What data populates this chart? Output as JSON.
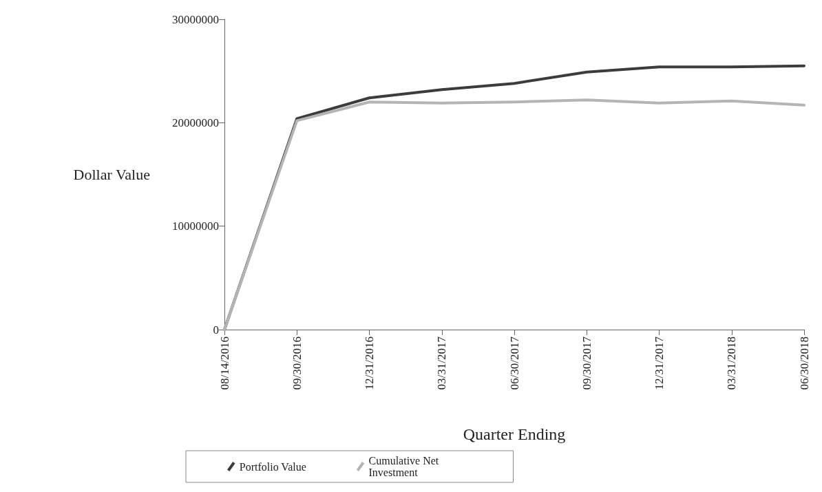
{
  "chart_data": {
    "type": "line",
    "xlabel": "Quarter Ending",
    "ylabel": "Dollar Value",
    "categories": [
      "08/14/2016",
      "09/30/2016",
      "12/31/2016",
      "03/31/2017",
      "06/30/2017",
      "09/30/2017",
      "12/31/2017",
      "03/31/2018",
      "06/30/2018"
    ],
    "series": [
      {
        "name": "Portfolio Value",
        "color": "#3c3c3c",
        "values": [
          0,
          20400000,
          22400000,
          23200000,
          23800000,
          24900000,
          25400000,
          25400000,
          25500000
        ]
      },
      {
        "name": "Cumulative Net Investment",
        "color": "#b4b4b4",
        "values": [
          0,
          20200000,
          22000000,
          21900000,
          22000000,
          22200000,
          21900000,
          22100000,
          21700000
        ]
      }
    ],
    "ylim": [
      0,
      30000000
    ],
    "yticks": [
      0,
      10000000,
      20000000,
      30000000
    ],
    "grid": false,
    "legend": "bottom",
    "marker": "none",
    "line_style": "solid"
  }
}
